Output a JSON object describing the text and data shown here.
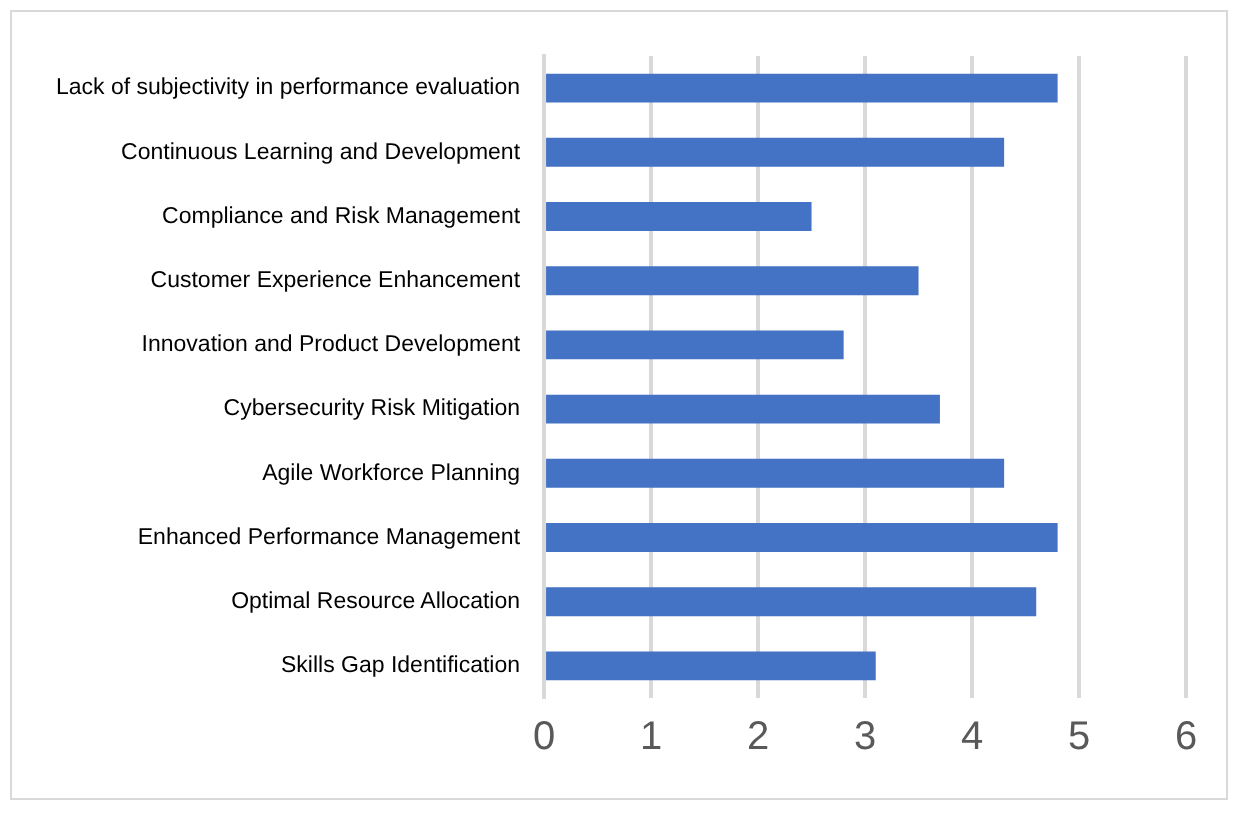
{
  "chart_data": {
    "type": "bar",
    "orientation": "horizontal",
    "categories": [
      "Lack of subjectivity in performance evaluation",
      "Continuous Learning and Development",
      "Compliance and Risk Management",
      "Customer Experience Enhancement",
      "Innovation and Product Development",
      "Cybersecurity Risk Mitigation",
      "Agile Workforce Planning",
      "Enhanced Performance Management",
      "Optimal Resource Allocation",
      "Skills Gap Identification"
    ],
    "values": [
      4.8,
      4.3,
      2.5,
      3.5,
      2.8,
      3.7,
      4.3,
      4.8,
      4.6,
      3.1
    ],
    "color": "#4472c4",
    "xlim": [
      0,
      6
    ],
    "xticks": [
      0,
      1,
      2,
      3,
      4,
      5,
      6
    ],
    "grid": "x",
    "legend": false
  }
}
